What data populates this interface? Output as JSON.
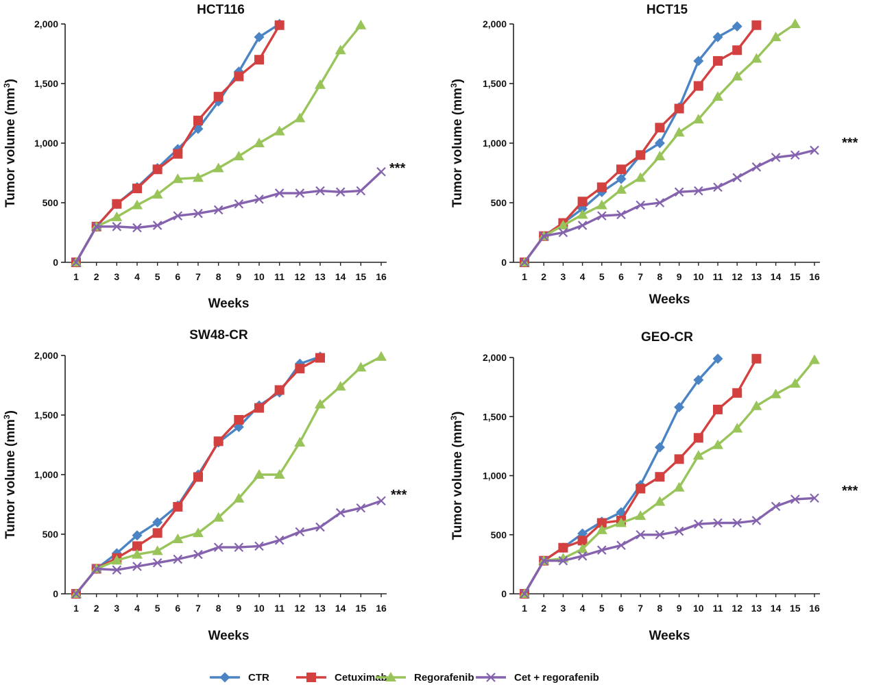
{
  "colors": {
    "CTR": "#4a84c4",
    "Cetuximab": "#d2403f",
    "Regorafenib": "#98c459",
    "Cet + regorafenib": "#8562ad"
  },
  "legend": {
    "placement": "bottom-center",
    "items": [
      "CTR",
      "Cetuximab",
      "Regorafenib",
      "Cet + regorafenib"
    ]
  },
  "chart_data": [
    {
      "type": "line",
      "title": "HCT116",
      "xlabel": "Weeks",
      "ylabel": "Tumor volume (mm3)",
      "ylim": [
        0,
        2000
      ],
      "yticks": [
        "0",
        "500",
        "1,000",
        "1,500",
        "2,000"
      ],
      "xticks": [
        "1",
        "2",
        "3",
        "4",
        "5",
        "6",
        "7",
        "8",
        "9",
        "10",
        "11",
        "12",
        "13",
        "14",
        "15",
        "16"
      ],
      "grid": false,
      "annotation": "***",
      "series": [
        {
          "name": "CTR",
          "x": [
            1,
            2,
            3,
            4,
            5,
            6,
            7,
            8,
            9,
            10,
            11
          ],
          "values": [
            0,
            300,
            490,
            630,
            790,
            950,
            1120,
            1350,
            1600,
            1890,
            2000
          ]
        },
        {
          "name": "Cetuximab",
          "x": [
            1,
            2,
            3,
            4,
            5,
            6,
            7,
            8,
            9,
            10,
            11
          ],
          "values": [
            0,
            300,
            490,
            620,
            780,
            910,
            1190,
            1390,
            1560,
            1700,
            1990
          ]
        },
        {
          "name": "Regorafenib",
          "x": [
            1,
            2,
            3,
            4,
            5,
            6,
            7,
            8,
            9,
            10,
            11,
            12,
            13,
            14,
            15
          ],
          "values": [
            0,
            300,
            380,
            480,
            570,
            700,
            710,
            790,
            890,
            1000,
            1100,
            1210,
            1490,
            1780,
            1990
          ]
        },
        {
          "name": "Cet + regorafenib",
          "x": [
            1,
            2,
            3,
            4,
            5,
            6,
            7,
            8,
            9,
            10,
            11,
            12,
            13,
            14,
            15,
            16
          ],
          "values": [
            0,
            300,
            300,
            290,
            310,
            390,
            410,
            440,
            490,
            530,
            580,
            580,
            600,
            590,
            600,
            760
          ]
        }
      ]
    },
    {
      "type": "line",
      "title": "HCT15",
      "xlabel": "Weeks",
      "ylabel": "Tumor volume (mm3)",
      "ylim": [
        0,
        2000
      ],
      "yticks": [
        "0",
        "500",
        "1,000",
        "1,500",
        "2,000"
      ],
      "xticks": [
        "1",
        "2",
        "3",
        "4",
        "5",
        "6",
        "7",
        "8",
        "9",
        "10",
        "11",
        "12",
        "13",
        "14",
        "15",
        "16"
      ],
      "grid": false,
      "annotation": "***",
      "series": [
        {
          "name": "CTR",
          "x": [
            1,
            2,
            3,
            4,
            5,
            6,
            7,
            8,
            9,
            10,
            11,
            12
          ],
          "values": [
            0,
            220,
            330,
            450,
            590,
            700,
            900,
            1000,
            1300,
            1690,
            1890,
            1980
          ]
        },
        {
          "name": "Cetuximab",
          "x": [
            1,
            2,
            3,
            4,
            5,
            6,
            7,
            8,
            9,
            10,
            11,
            12,
            13
          ],
          "values": [
            0,
            220,
            330,
            510,
            630,
            780,
            900,
            1130,
            1290,
            1480,
            1690,
            1780,
            1990
          ]
        },
        {
          "name": "Regorafenib",
          "x": [
            1,
            2,
            3,
            4,
            5,
            6,
            7,
            8,
            9,
            10,
            11,
            12,
            13,
            14,
            15
          ],
          "values": [
            0,
            220,
            310,
            400,
            480,
            610,
            710,
            890,
            1090,
            1200,
            1390,
            1560,
            1710,
            1890,
            2000
          ]
        },
        {
          "name": "Cet + regorafenib",
          "x": [
            1,
            2,
            3,
            4,
            5,
            6,
            7,
            8,
            9,
            10,
            11,
            12,
            13,
            14,
            15,
            16
          ],
          "values": [
            0,
            220,
            250,
            310,
            390,
            400,
            480,
            500,
            590,
            600,
            630,
            710,
            800,
            880,
            900,
            940
          ]
        }
      ]
    },
    {
      "type": "line",
      "title": "SW48-CR",
      "xlabel": "Weeks",
      "ylabel": "Tumor volume (mm3)",
      "ylim": [
        0,
        2000
      ],
      "yticks": [
        "0",
        "500",
        "1,000",
        "1,500",
        "2,000"
      ],
      "xticks": [
        "1",
        "2",
        "3",
        "4",
        "5",
        "6",
        "7",
        "8",
        "9",
        "10",
        "11",
        "12",
        "13",
        "14",
        "15",
        "16"
      ],
      "grid": false,
      "annotation": "***",
      "series": [
        {
          "name": "CTR",
          "x": [
            1,
            2,
            3,
            4,
            5,
            6,
            7,
            8,
            9,
            10,
            11,
            12,
            13
          ],
          "values": [
            0,
            210,
            340,
            490,
            600,
            740,
            1000,
            1270,
            1400,
            1580,
            1690,
            1930,
            1990
          ]
        },
        {
          "name": "Cetuximab",
          "x": [
            1,
            2,
            3,
            4,
            5,
            6,
            7,
            8,
            9,
            10,
            11,
            12,
            13
          ],
          "values": [
            0,
            210,
            300,
            400,
            510,
            730,
            980,
            1280,
            1460,
            1560,
            1710,
            1890,
            1980
          ]
        },
        {
          "name": "Regorafenib",
          "x": [
            1,
            2,
            3,
            4,
            5,
            6,
            7,
            8,
            9,
            10,
            11,
            12,
            13,
            14,
            15,
            16
          ],
          "values": [
            0,
            210,
            280,
            330,
            360,
            460,
            510,
            640,
            800,
            1000,
            1000,
            1270,
            1590,
            1740,
            1900,
            1990
          ]
        },
        {
          "name": "Cet + regorafenib",
          "x": [
            1,
            2,
            3,
            4,
            5,
            6,
            7,
            8,
            9,
            10,
            11,
            12,
            13,
            14,
            15,
            16
          ],
          "values": [
            0,
            210,
            200,
            230,
            260,
            290,
            330,
            390,
            390,
            400,
            450,
            520,
            560,
            680,
            720,
            780
          ]
        }
      ]
    },
    {
      "type": "line",
      "title": "GEO-CR",
      "xlabel": "Weeks",
      "ylabel": "Tumor volume (mm3)",
      "ylim": [
        0,
        2000
      ],
      "yticks": [
        "0",
        "500",
        "1,000",
        "1,500",
        "2,000"
      ],
      "xticks": [
        "1",
        "2",
        "3",
        "4",
        "5",
        "6",
        "7",
        "8",
        "9",
        "10",
        "11",
        "12",
        "13",
        "14",
        "15",
        "16"
      ],
      "grid": false,
      "annotation": "***",
      "series": [
        {
          "name": "CTR",
          "x": [
            1,
            2,
            3,
            4,
            5,
            6,
            7,
            8,
            9,
            10,
            11
          ],
          "values": [
            0,
            280,
            390,
            510,
            610,
            690,
            920,
            1240,
            1580,
            1810,
            1990
          ]
        },
        {
          "name": "Cetuximab",
          "x": [
            1,
            2,
            3,
            4,
            5,
            6,
            7,
            8,
            9,
            10,
            11,
            12,
            13
          ],
          "values": [
            0,
            280,
            390,
            450,
            600,
            620,
            890,
            990,
            1140,
            1320,
            1560,
            1700,
            1990
          ]
        },
        {
          "name": "Regorafenib",
          "x": [
            1,
            2,
            3,
            4,
            5,
            6,
            7,
            8,
            9,
            10,
            11,
            12,
            13,
            14,
            15,
            16
          ],
          "values": [
            0,
            280,
            300,
            380,
            540,
            600,
            660,
            780,
            900,
            1170,
            1260,
            1400,
            1590,
            1690,
            1780,
            1980
          ]
        },
        {
          "name": "Cet + regorafenib",
          "x": [
            1,
            2,
            3,
            4,
            5,
            6,
            7,
            8,
            9,
            10,
            11,
            12,
            13,
            14,
            15,
            16
          ],
          "values": [
            0,
            280,
            280,
            320,
            370,
            410,
            500,
            500,
            530,
            590,
            600,
            600,
            620,
            740,
            800,
            810
          ]
        }
      ]
    }
  ]
}
